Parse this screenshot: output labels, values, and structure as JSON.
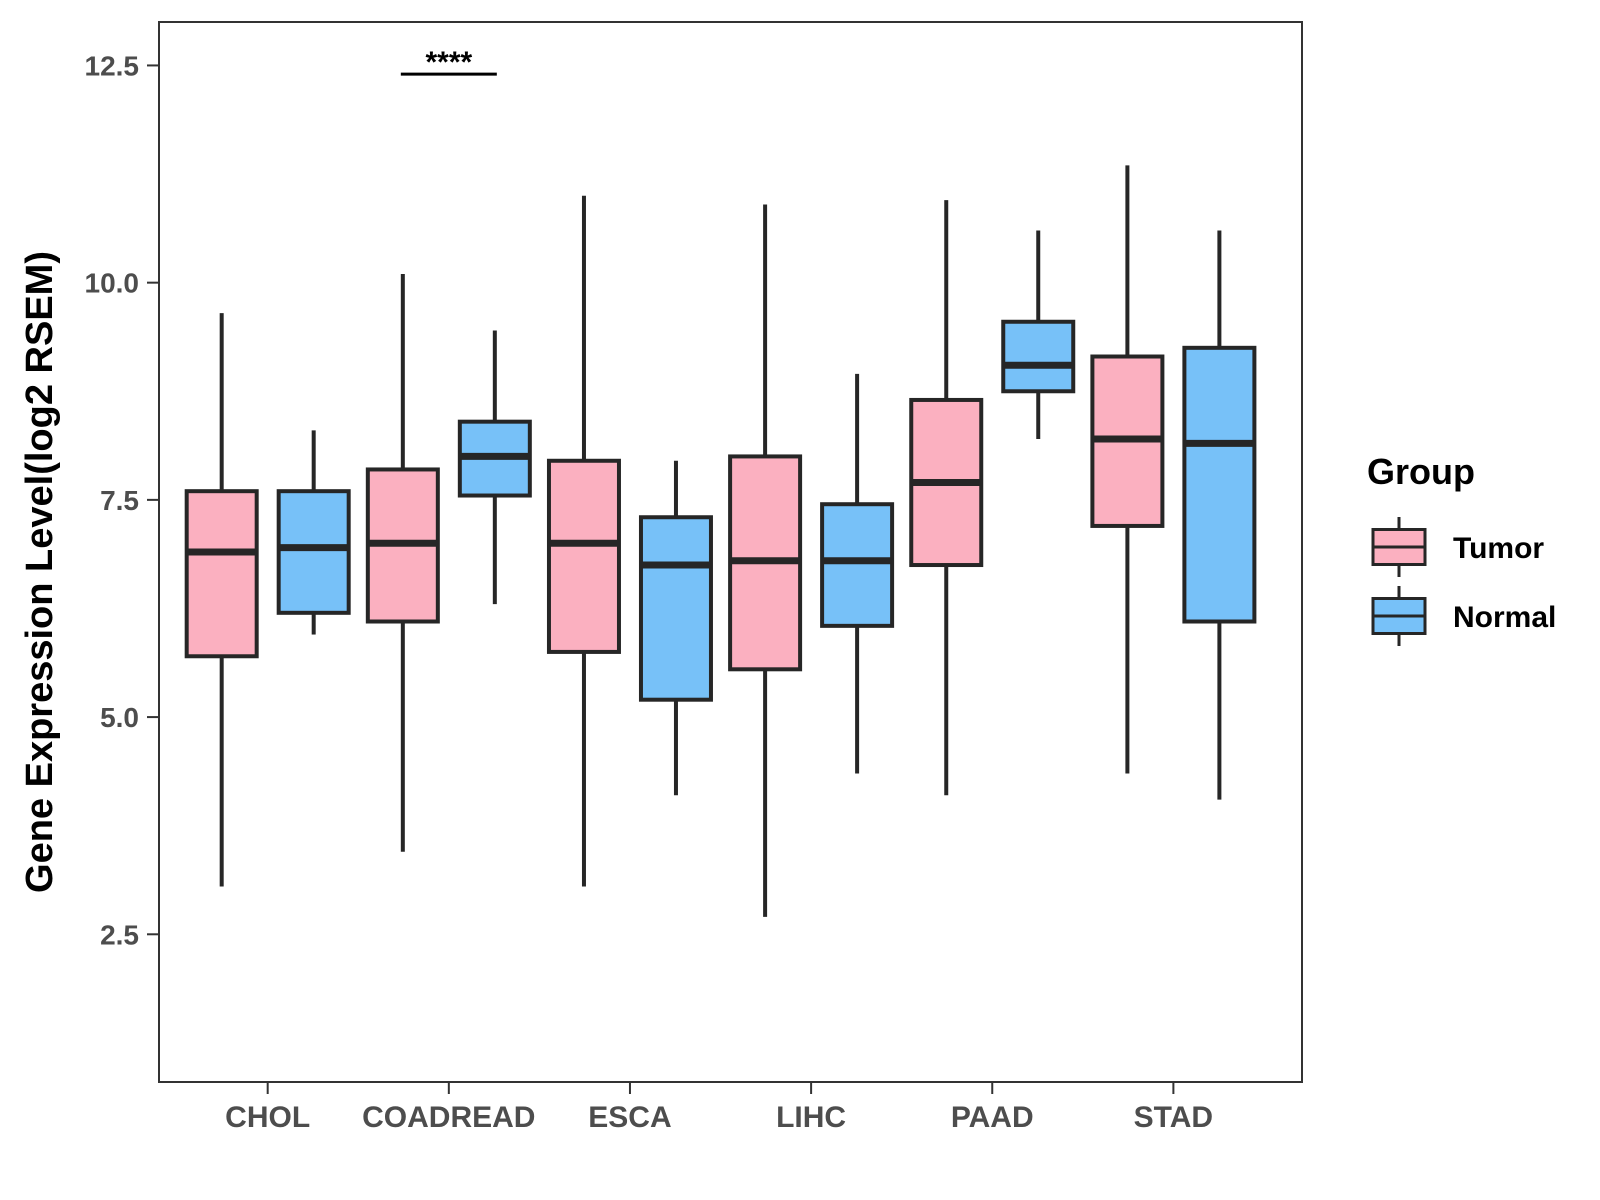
{
  "chart_data": {
    "type": "boxplot",
    "title": "",
    "xlabel": "",
    "ylabel": "Gene Expression Level(log2 RSEM)",
    "ylim": [
      0.8,
      13.0
    ],
    "yticks": [
      2.5,
      5.0,
      7.5,
      10.0,
      12.5
    ],
    "ytick_labels": [
      "2.5",
      "5.0",
      "7.5",
      "10.0",
      "12.5"
    ],
    "categories": [
      "CHOL",
      "COADREAD",
      "ESCA",
      "LIHC",
      "PAAD",
      "STAD"
    ],
    "grid": false,
    "legend": {
      "title": "Group",
      "position": "right",
      "entries": [
        {
          "name": "Tumor",
          "color": "#fbb0c0"
        },
        {
          "name": "Normal",
          "color": "#77c1f8"
        }
      ]
    },
    "series": [
      {
        "name": "Tumor",
        "color": "#fbb0c0",
        "boxes": [
          {
            "min": 3.05,
            "q1": 5.7,
            "median": 6.9,
            "q3": 7.6,
            "max": 9.65
          },
          {
            "min": 3.45,
            "q1": 6.1,
            "median": 7.0,
            "q3": 7.85,
            "max": 10.1
          },
          {
            "min": 3.05,
            "q1": 5.75,
            "median": 7.0,
            "q3": 7.95,
            "max": 11.0
          },
          {
            "min": 2.7,
            "q1": 5.55,
            "median": 6.8,
            "q3": 8.0,
            "max": 10.9
          },
          {
            "min": 4.1,
            "q1": 6.75,
            "median": 7.7,
            "q3": 8.65,
            "max": 10.95
          },
          {
            "min": 4.35,
            "q1": 7.2,
            "median": 8.2,
            "q3": 9.15,
            "max": 11.35
          }
        ]
      },
      {
        "name": "Normal",
        "color": "#77c1f8",
        "boxes": [
          {
            "min": 5.95,
            "q1": 6.2,
            "median": 6.95,
            "q3": 7.6,
            "max": 8.3
          },
          {
            "min": 6.3,
            "q1": 7.55,
            "median": 8.0,
            "q3": 8.4,
            "max": 9.45
          },
          {
            "min": 4.1,
            "q1": 5.2,
            "median": 6.75,
            "q3": 7.3,
            "max": 7.95
          },
          {
            "min": 4.35,
            "q1": 6.05,
            "median": 6.8,
            "q3": 7.45,
            "max": 8.95
          },
          {
            "min": 8.2,
            "q1": 8.75,
            "median": 9.05,
            "q3": 9.55,
            "max": 10.6
          },
          {
            "min": 4.05,
            "q1": 6.1,
            "median": 8.15,
            "q3": 9.25,
            "max": 10.6
          }
        ]
      }
    ],
    "annotations": [
      {
        "category": "COADREAD",
        "text": "****",
        "y": 12.4
      }
    ]
  }
}
